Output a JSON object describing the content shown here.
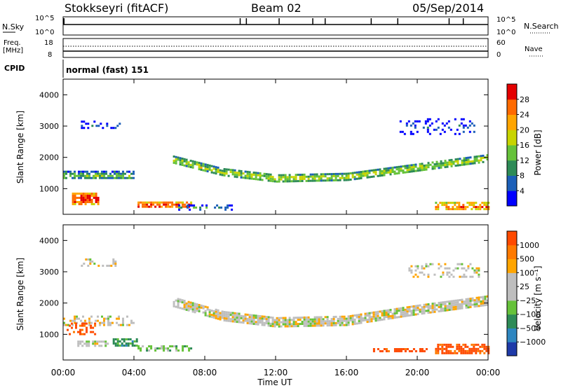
{
  "header": {
    "station": "Stokkseyri (fitACF)",
    "beam": "Beam 02",
    "date": "05/Sep/2014"
  },
  "nsky_panel": {
    "left_label": "N.Sky",
    "left_ticks": [
      "10^5",
      "10^0"
    ],
    "right_ticks": [
      "10^5",
      "10^0"
    ],
    "right_label": "N.Search",
    "spikes_hours": [
      0.05,
      10.0,
      10.35,
      12.2,
      14.1,
      14.8,
      17.4,
      18.9,
      21.8,
      22.6
    ]
  },
  "freq_panel": {
    "left_label_1": "Freq.",
    "left_label_2": "[MHz]",
    "left_ticks": [
      "18",
      "8"
    ],
    "right_ticks": [
      "60",
      "0"
    ],
    "right_label": "Nave"
  },
  "cpid_panel": {
    "label": "CPID",
    "text": "normal (fast) 151"
  },
  "axes": {
    "ylabel": "Slant Range [km]",
    "xlabel": "Time UT",
    "x_ticks": [
      "00:00",
      "04:00",
      "08:00",
      "12:00",
      "16:00",
      "20:00",
      "00:00"
    ],
    "y_ticks": [
      "1000",
      "2000",
      "3000",
      "4000"
    ]
  },
  "colors": {
    "power_scale": [
      "#0000ff",
      "#1c5fb8",
      "#2e8b57",
      "#66c23a",
      "#c8d400",
      "#ffa500",
      "#ff6a00",
      "#e40000"
    ],
    "velocity_scale": [
      "#1e3aa8",
      "#2e86c0",
      "#2e8b57",
      "#66c23a",
      "#bebebe",
      "#bebebe",
      "#ffa500",
      "#ff7a00",
      "#ff4a00",
      "#e40000"
    ],
    "ground_scatter": "#bebebe"
  },
  "chart_data": [
    {
      "type": "heatmap",
      "title": "Power",
      "colorbar_label": "Power [dB]",
      "colorbar_ticks": [
        "4",
        "8",
        "12",
        "16",
        "20",
        "24",
        "28"
      ],
      "xlim_hours": [
        0,
        24
      ],
      "ylim_km": [
        180,
        4500
      ],
      "ylabel": "Slant Range [km]",
      "bands": [
        {
          "t0": 0.0,
          "t1": 4.0,
          "r_center": 1450,
          "r_width": 250,
          "density": 0.75,
          "level": 3
        },
        {
          "t0": 6.2,
          "t1": 24.0,
          "r_center_curve": [
            [
              6.2,
              1950
            ],
            [
              9,
              1550
            ],
            [
              12,
              1350
            ],
            [
              16,
              1400
            ],
            [
              20,
              1700
            ],
            [
              24,
              2000
            ]
          ],
          "r_width": 220,
          "density": 0.8,
          "level": 4
        },
        {
          "t0": 0.5,
          "t1": 2.0,
          "r_center": 700,
          "r_width": 350,
          "density": 0.8,
          "level": 7
        },
        {
          "t0": 4.2,
          "t1": 7.2,
          "r_center": 500,
          "r_width": 180,
          "density": 0.75,
          "level": 7
        },
        {
          "t0": 21.0,
          "t1": 24.0,
          "r_center": 450,
          "r_width": 260,
          "density": 0.7,
          "level": 6
        },
        {
          "t0": 1.0,
          "t1": 3.3,
          "r_center": 3050,
          "r_width": 250,
          "density": 0.3,
          "level": 1
        },
        {
          "t0": 19.0,
          "t1": 23.5,
          "r_center": 3000,
          "r_width": 500,
          "density": 0.2,
          "level": 1
        },
        {
          "t0": 6.5,
          "t1": 9.5,
          "r_center": 420,
          "r_width": 150,
          "density": 0.35,
          "level": 2
        }
      ]
    },
    {
      "type": "heatmap",
      "title": "Velocity",
      "colorbar_label": "Velocity [m s⁻¹]",
      "colorbar_ticks": [
        "1000",
        "500",
        "100",
        "25",
        "−25",
        "−100",
        "−500",
        "−1000"
      ],
      "xlim_hours": [
        0,
        24
      ],
      "ylim_km": [
        180,
        4500
      ],
      "ylabel": "Slant Range [km]",
      "bands": [
        {
          "t0": 0.0,
          "t1": 4.0,
          "r_center": 1450,
          "r_width": 300,
          "density": 0.4,
          "level": 4
        },
        {
          "t0": 6.2,
          "t1": 24.0,
          "r_center_curve": [
            [
              6.2,
              2050
            ],
            [
              9,
              1600
            ],
            [
              12,
              1400
            ],
            [
              16,
              1450
            ],
            [
              20,
              1800
            ],
            [
              24,
              2100
            ]
          ],
          "r_width": 300,
          "density": 0.85,
          "level": 4
        },
        {
          "t0": 0.2,
          "t1": 1.8,
          "r_center": 1200,
          "r_width": 350,
          "density": 0.45,
          "level": 7
        },
        {
          "t0": 2.8,
          "t1": 4.2,
          "r_center": 750,
          "r_width": 250,
          "density": 0.65,
          "level": 2
        },
        {
          "t0": 4.2,
          "t1": 7.2,
          "r_center": 550,
          "r_width": 200,
          "density": 0.5,
          "level": 3
        },
        {
          "t0": 0.8,
          "t1": 2.5,
          "r_center": 700,
          "r_width": 200,
          "density": 0.6,
          "level": 4
        },
        {
          "t0": 17.5,
          "t1": 20.5,
          "r_center": 500,
          "r_width": 120,
          "density": 0.55,
          "level": 7
        },
        {
          "t0": 21.0,
          "t1": 24.0,
          "r_center": 550,
          "r_width": 300,
          "density": 0.7,
          "level": 7
        },
        {
          "t0": 1.0,
          "t1": 3.0,
          "r_center": 3300,
          "r_width": 250,
          "density": 0.25,
          "level": 4
        },
        {
          "t0": 19.5,
          "t1": 23.5,
          "r_center": 3050,
          "r_width": 450,
          "density": 0.3,
          "level": 4
        }
      ]
    }
  ]
}
